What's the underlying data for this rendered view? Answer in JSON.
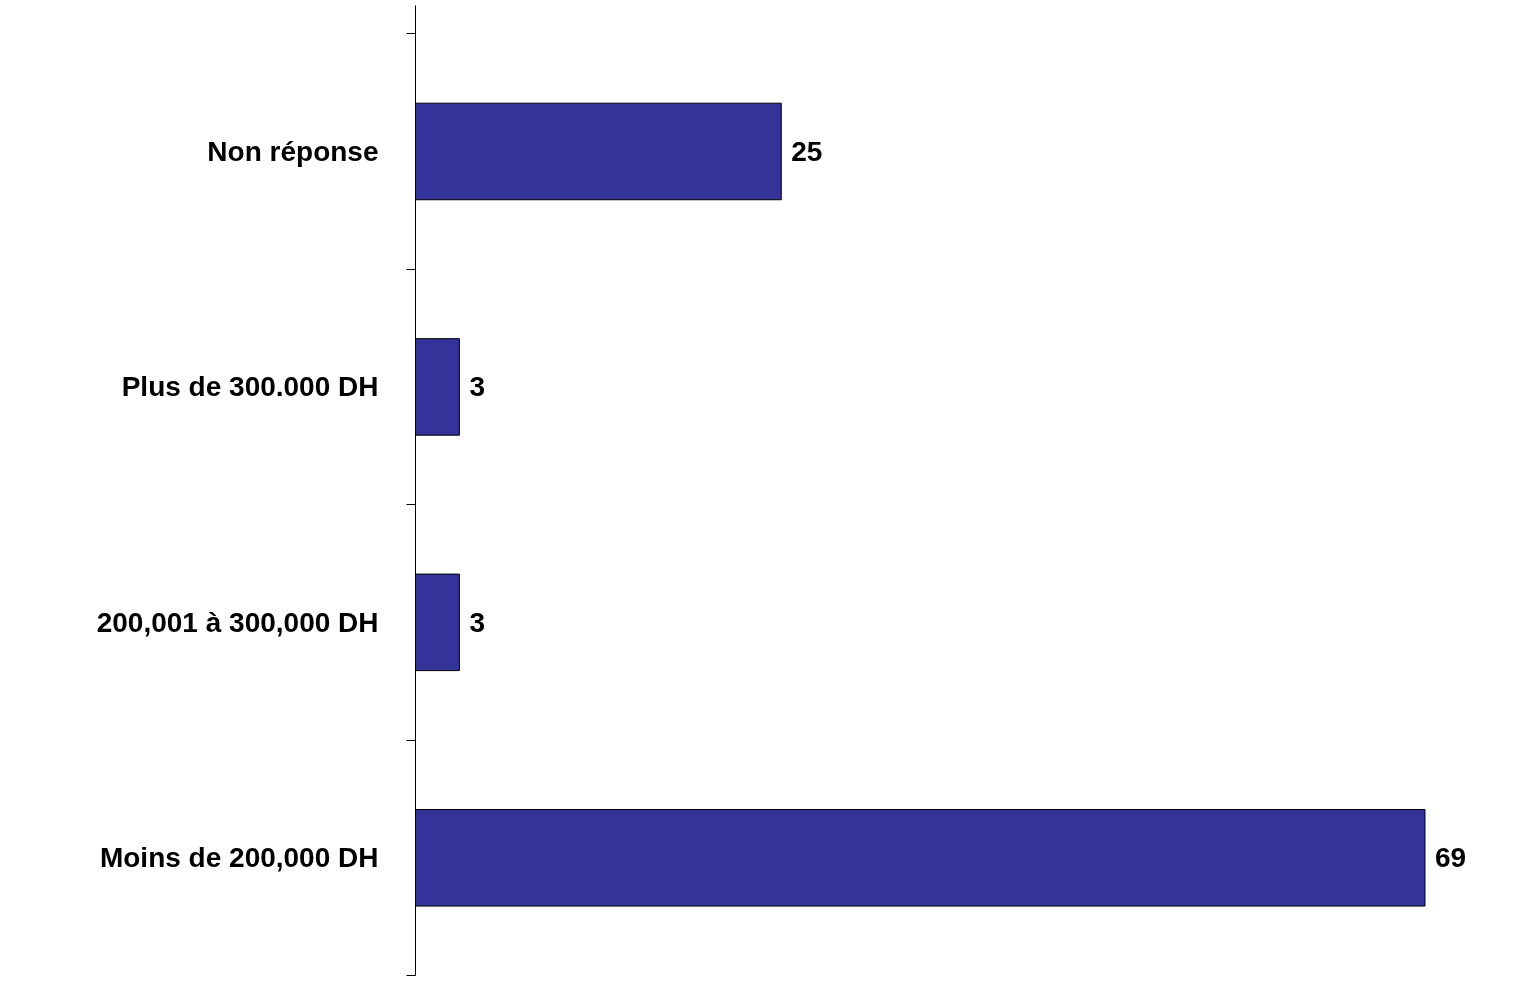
{
  "chart_data": {
    "type": "bar",
    "orientation": "horizontal",
    "categories": [
      "Non réponse",
      "Plus de 300.000 DH",
      "200,001 à 300,000 DH",
      "Moins de 200,000 DH"
    ],
    "values": [
      25,
      3,
      3,
      69
    ],
    "color": "#333399",
    "data_labels": true
  }
}
